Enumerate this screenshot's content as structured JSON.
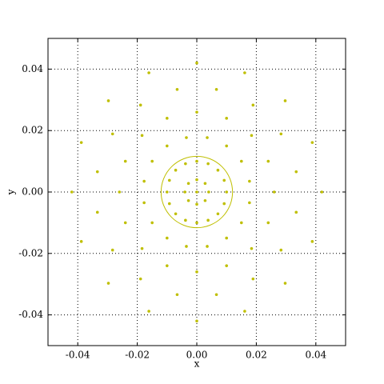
{
  "chart_data": {
    "type": "scatter",
    "x_label": "x",
    "y_label": "y",
    "color": "#bfbf00",
    "xlim": [
      -0.05,
      0.05
    ],
    "ylim": [
      -0.05,
      0.05
    ],
    "xticks": [
      -0.04,
      -0.02,
      {
        "value": 0,
        "label": "0.00"
      },
      0.02,
      0.04
    ],
    "yticks": [
      -0.04,
      -0.02,
      {
        "value": 0,
        "label": "0.00"
      },
      0.02,
      0.04
    ],
    "grid": true,
    "x": [
      0.042,
      0.0388,
      0.0297,
      0.0161,
      0,
      -0.0161,
      -0.0297,
      -0.0388,
      -0.042,
      -0.0388,
      -0.0297,
      -0.0161,
      0,
      0.0161,
      0.0297,
      0.0388,
      0.0334,
      0.0283,
      0.0189,
      0.0066,
      -0.0066,
      -0.0189,
      -0.0283,
      -0.0334,
      -0.0334,
      -0.0283,
      -0.0189,
      -0.0066,
      0.0066,
      0.0189,
      0.0283,
      0.0334,
      0.026,
      0.024,
      0.0184,
      0.01,
      0,
      -0.01,
      -0.0184,
      -0.024,
      -0.026,
      -0.024,
      -0.0184,
      -0.01,
      0,
      0.01,
      0.0184,
      0.024,
      0.0177,
      0.015,
      0.01,
      0.0035,
      -0.0035,
      -0.01,
      -0.015,
      -0.0177,
      -0.0177,
      -0.015,
      -0.01,
      -0.0035,
      0.0035,
      0.01,
      0.015,
      0.0177,
      0.01,
      0.0092,
      0.0071,
      0.0038,
      0,
      -0.0038,
      -0.0071,
      -0.0092,
      -0.01,
      -0.0092,
      -0.0071,
      -0.0038,
      0,
      0.0038,
      0.0071,
      0.0092,
      0.004,
      0.0028,
      0,
      -0.0028,
      -0.004,
      -0.0028,
      0,
      0.0028,
      0
    ],
    "y": [
      0,
      0.0161,
      0.0297,
      0.0388,
      0.042,
      0.0388,
      0.0297,
      0.0161,
      0,
      -0.0161,
      -0.0297,
      -0.0388,
      -0.042,
      -0.0388,
      -0.0297,
      -0.0161,
      0.0066,
      0.0189,
      0.0283,
      0.0334,
      0.0334,
      0.0283,
      0.0189,
      0.0066,
      -0.0066,
      -0.0189,
      -0.0283,
      -0.0334,
      -0.0334,
      -0.0283,
      -0.0189,
      -0.0066,
      0,
      0.01,
      0.0184,
      0.024,
      0.026,
      0.024,
      0.0184,
      0.01,
      0,
      -0.01,
      -0.0184,
      -0.024,
      -0.026,
      -0.024,
      -0.0184,
      -0.01,
      0.0035,
      0.01,
      0.015,
      0.0177,
      0.0177,
      0.015,
      0.01,
      0.0035,
      -0.0035,
      -0.01,
      -0.015,
      -0.0177,
      -0.0177,
      -0.015,
      -0.01,
      -0.0035,
      0,
      0.0038,
      0.0071,
      0.0092,
      0.01,
      0.0092,
      0.0071,
      0.0038,
      0,
      -0.0038,
      -0.0071,
      -0.0092,
      -0.01,
      -0.0092,
      -0.0071,
      -0.0038,
      0,
      0.0028,
      0.004,
      0.0028,
      0,
      -0.0028,
      -0.004,
      -0.0028,
      0
    ],
    "circle": {
      "center": [
        0,
        0
      ],
      "radius": 0.012
    }
  }
}
